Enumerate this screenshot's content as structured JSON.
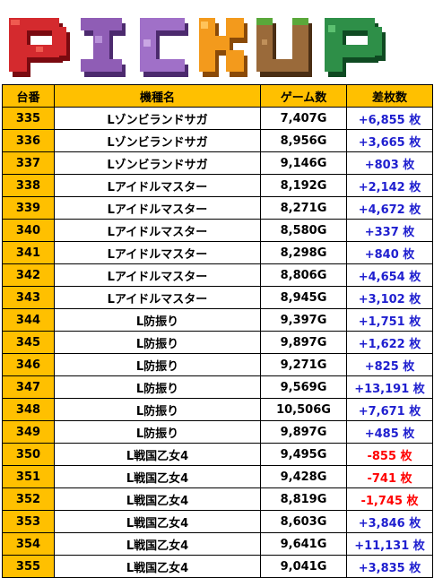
{
  "banner": {
    "title": "PICKUP"
  },
  "colors": {
    "header_bg": "#ffc000",
    "plus": "#1f1fcf",
    "minus": "#ff0000"
  },
  "headers": [
    "台番",
    "機種名",
    "ゲーム数",
    "差枚数"
  ],
  "rows": [
    {
      "no": "335",
      "machine": "Lゾンビランドサガ",
      "games": "7,407G",
      "diff": "+6,855 枚",
      "sign": "plus"
    },
    {
      "no": "336",
      "machine": "Lゾンビランドサガ",
      "games": "8,956G",
      "diff": "+3,665 枚",
      "sign": "plus"
    },
    {
      "no": "337",
      "machine": "Lゾンビランドサガ",
      "games": "9,146G",
      "diff": "+803 枚",
      "sign": "plus"
    },
    {
      "no": "338",
      "machine": "Lアイドルマスター",
      "games": "8,192G",
      "diff": "+2,142 枚",
      "sign": "plus"
    },
    {
      "no": "339",
      "machine": "Lアイドルマスター",
      "games": "8,271G",
      "diff": "+4,672 枚",
      "sign": "plus"
    },
    {
      "no": "340",
      "machine": "Lアイドルマスター",
      "games": "8,580G",
      "diff": "+337 枚",
      "sign": "plus"
    },
    {
      "no": "341",
      "machine": "Lアイドルマスター",
      "games": "8,298G",
      "diff": "+840 枚",
      "sign": "plus"
    },
    {
      "no": "342",
      "machine": "Lアイドルマスター",
      "games": "8,806G",
      "diff": "+4,654 枚",
      "sign": "plus"
    },
    {
      "no": "343",
      "machine": "Lアイドルマスター",
      "games": "8,945G",
      "diff": "+3,102 枚",
      "sign": "plus"
    },
    {
      "no": "344",
      "machine": "L防振り",
      "games": "9,397G",
      "diff": "+1,751 枚",
      "sign": "plus"
    },
    {
      "no": "345",
      "machine": "L防振り",
      "games": "9,897G",
      "diff": "+1,622 枚",
      "sign": "plus"
    },
    {
      "no": "346",
      "machine": "L防振り",
      "games": "9,271G",
      "diff": "+825 枚",
      "sign": "plus"
    },
    {
      "no": "347",
      "machine": "L防振り",
      "games": "9,569G",
      "diff": "+13,191 枚",
      "sign": "plus"
    },
    {
      "no": "348",
      "machine": "L防振り",
      "games": "10,506G",
      "diff": "+7,671 枚",
      "sign": "plus"
    },
    {
      "no": "349",
      "machine": "L防振り",
      "games": "9,897G",
      "diff": "+485 枚",
      "sign": "plus"
    },
    {
      "no": "350",
      "machine": "L戦国乙女4",
      "games": "9,495G",
      "diff": "-855 枚",
      "sign": "minus"
    },
    {
      "no": "351",
      "machine": "L戦国乙女4",
      "games": "9,428G",
      "diff": "-741 枚",
      "sign": "minus"
    },
    {
      "no": "352",
      "machine": "L戦国乙女4",
      "games": "8,819G",
      "diff": "-1,745 枚",
      "sign": "minus"
    },
    {
      "no": "353",
      "machine": "L戦国乙女4",
      "games": "8,603G",
      "diff": "+3,846 枚",
      "sign": "plus"
    },
    {
      "no": "354",
      "machine": "L戦国乙女4",
      "games": "9,641G",
      "diff": "+11,131 枚",
      "sign": "plus"
    },
    {
      "no": "355",
      "machine": "L戦国乙女4",
      "games": "9,041G",
      "diff": "+3,835 枚",
      "sign": "plus"
    }
  ]
}
